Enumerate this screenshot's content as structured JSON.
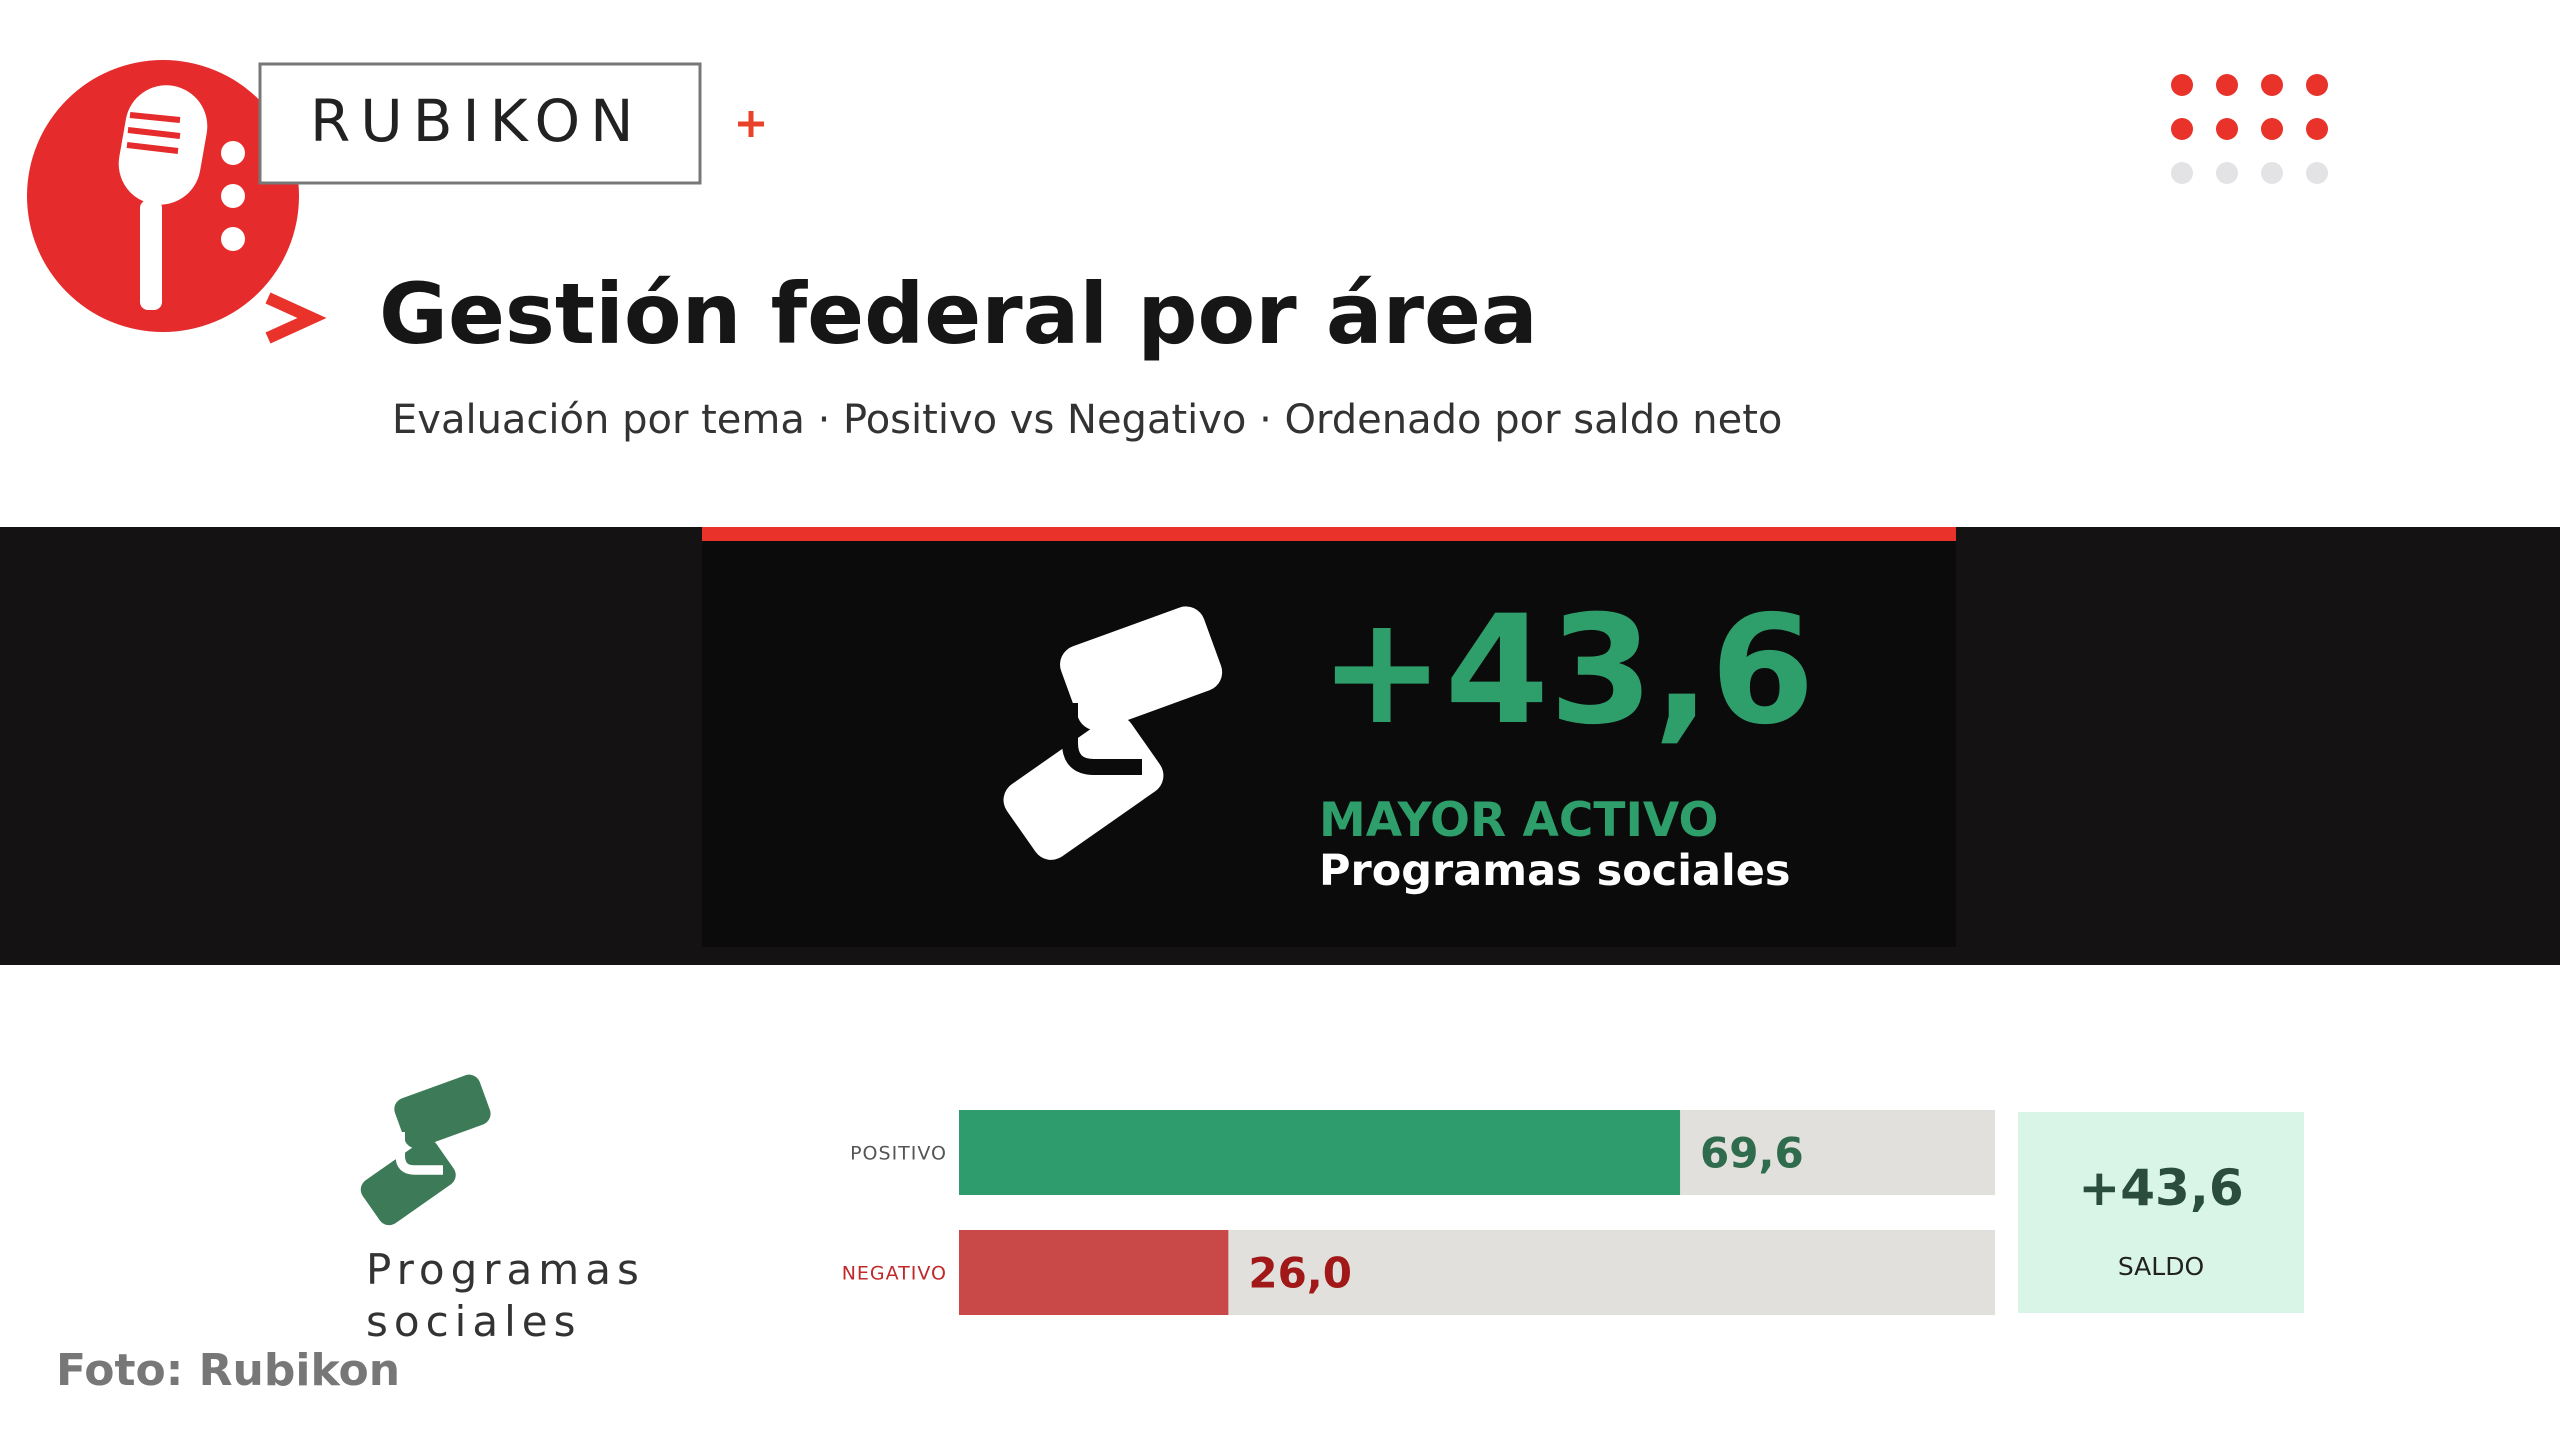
{
  "logo_text": "RUBIKON",
  "title": "Gestión federal por área",
  "subtitle": "Evaluación por tema · Positivo vs Negativo · Ordenado por saldo neto",
  "highlight": {
    "value": {
      "value": 43.6,
      "label": "+43,6"
    },
    "kicker": "MAYOR ACTIVO",
    "name": "Programas sociales"
  },
  "chart_data": {
    "type": "bar",
    "orientation": "horizontal",
    "category": "Programas sociales",
    "categories": [
      "POSITIVO",
      "NEGATIVO"
    ],
    "values": [
      69.6,
      26.0
    ],
    "value_labels": [
      "69,6",
      "26,0"
    ],
    "colors": [
      "#2f9c6e",
      "#c94848"
    ],
    "xlim": [
      0,
      100
    ],
    "net": {
      "value": 43.6,
      "label": "+43,6"
    },
    "net_label": "SALDO"
  },
  "credit": "Foto: Rubikon"
}
